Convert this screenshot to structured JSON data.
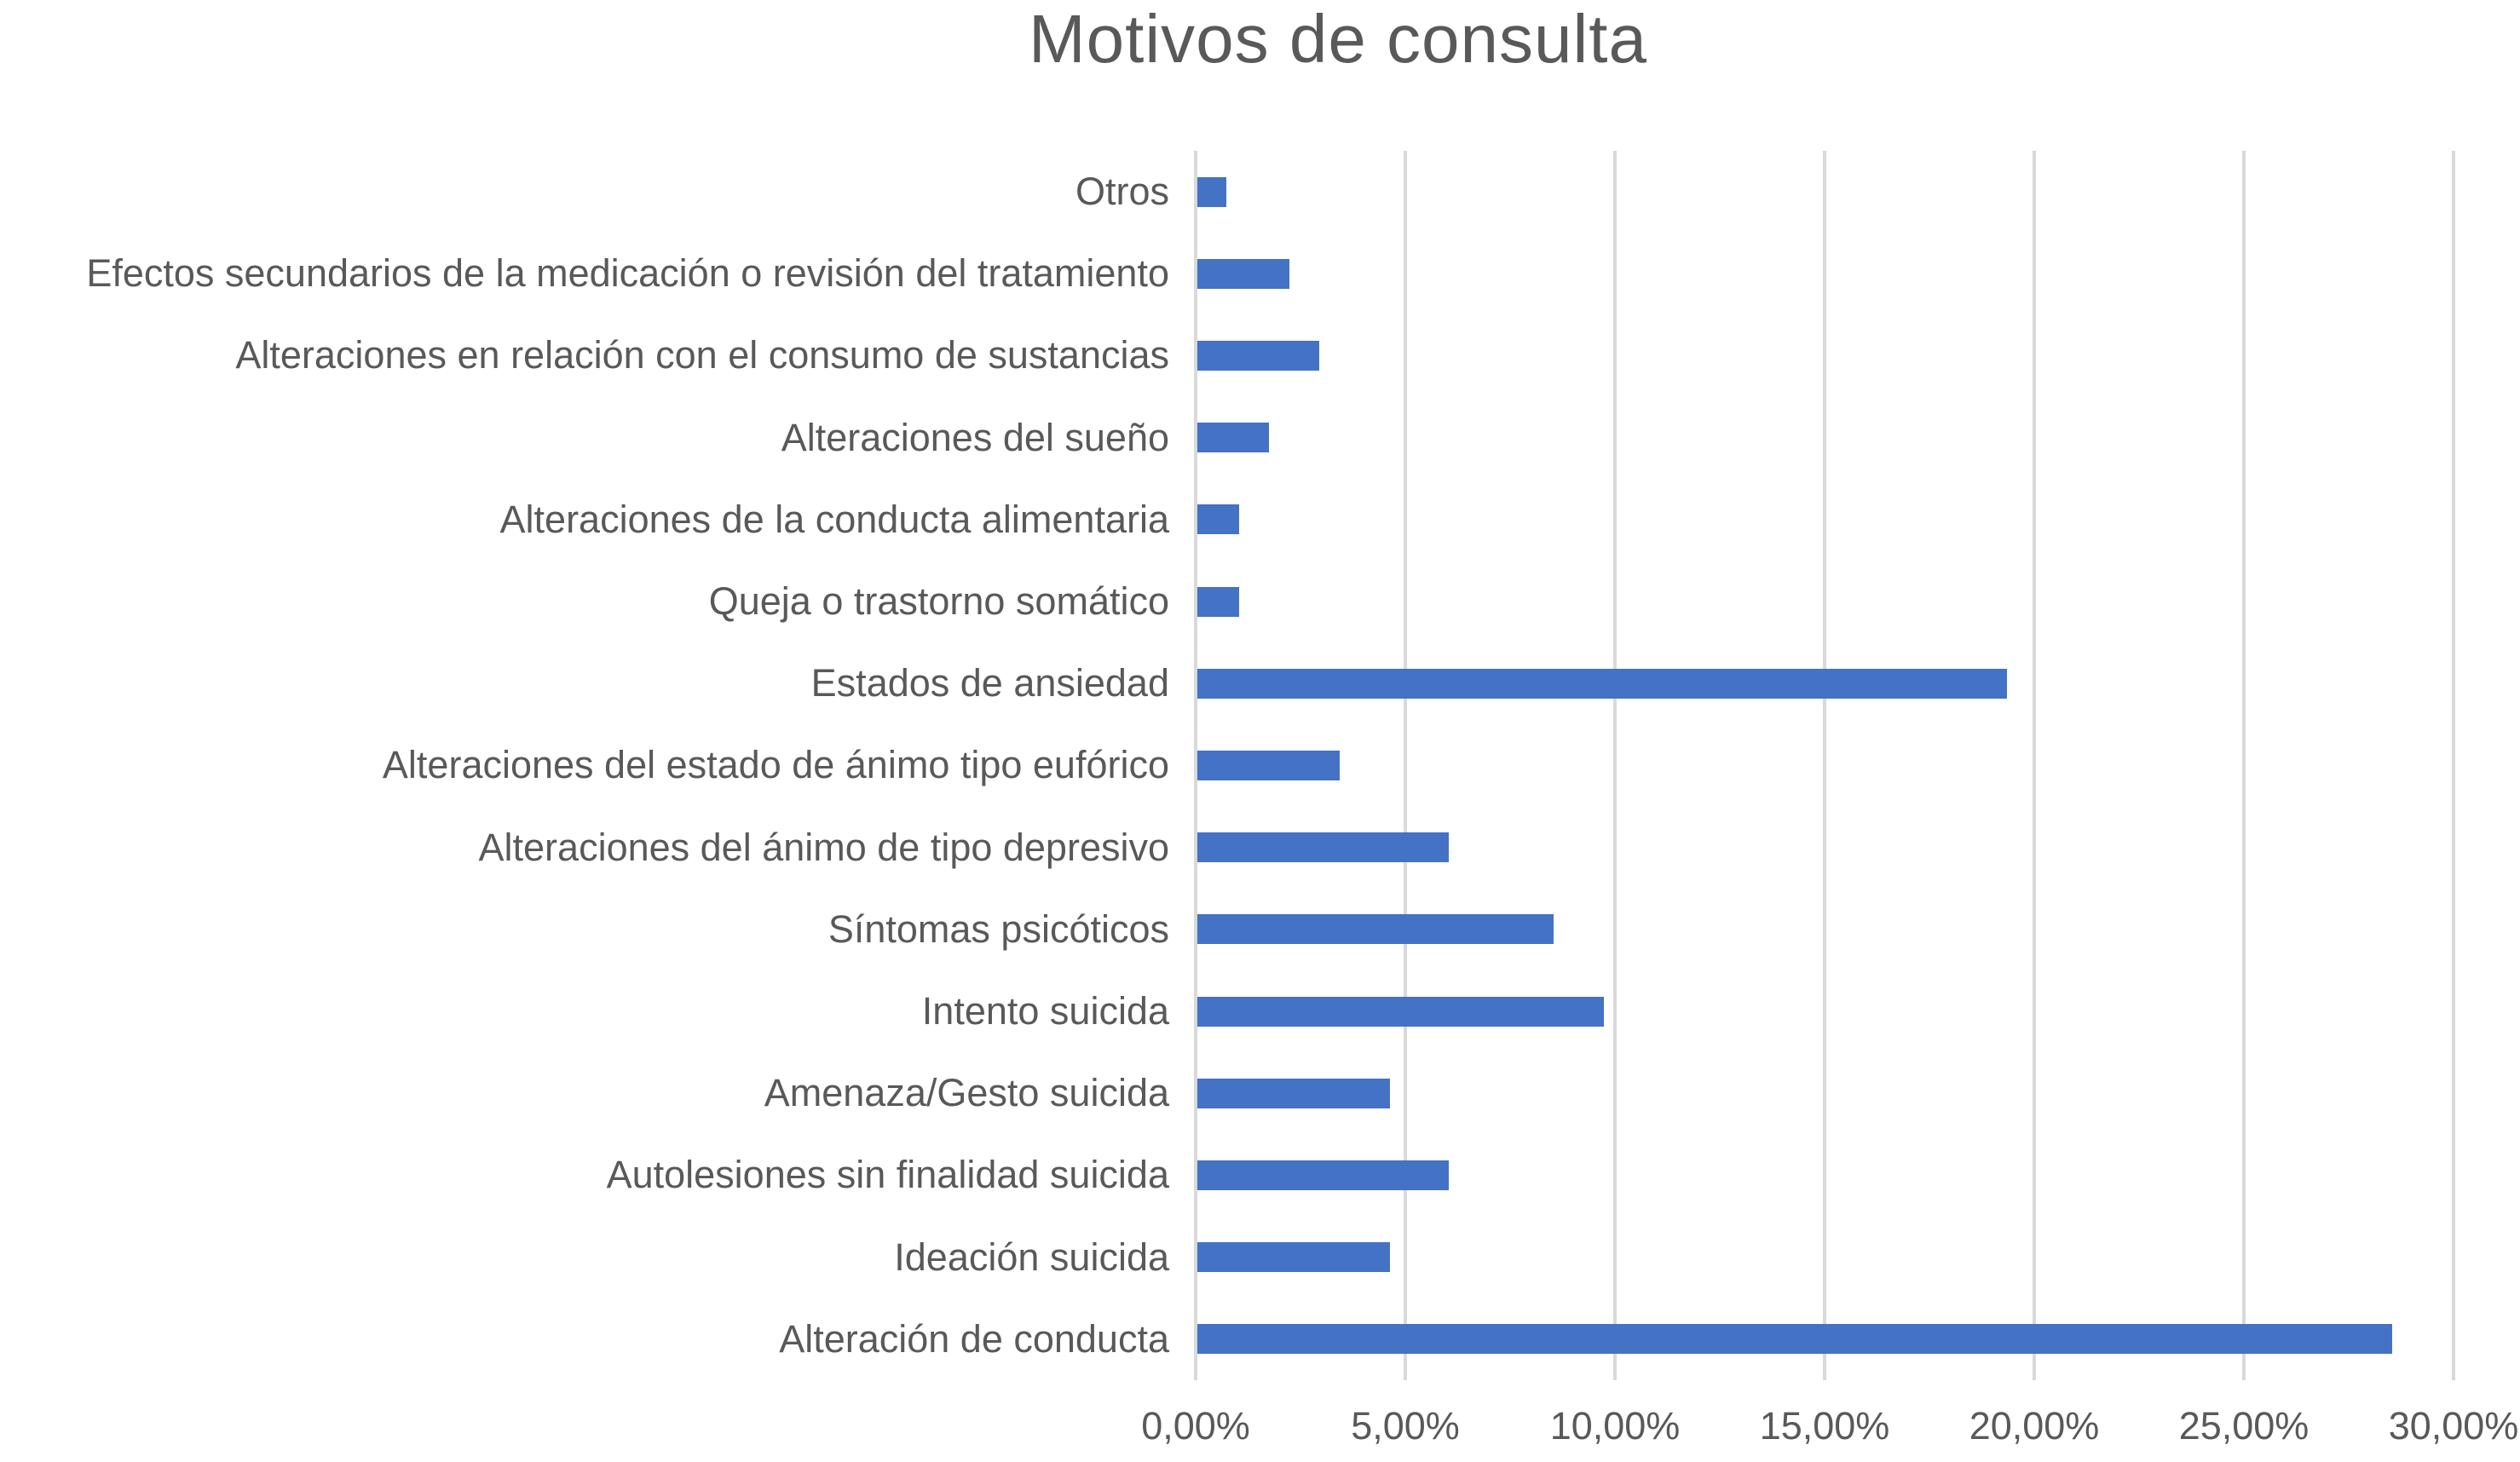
{
  "chart_data": {
    "type": "bar",
    "orientation": "horizontal",
    "title": "Motivos de consulta",
    "categories": [
      "Otros",
      "Efectos secundarios de la medicación o revisión del tratamiento",
      "Alteraciones en relación con el consumo de sustancias",
      "Alteraciones del sueño",
      "Alteraciones de la conducta alimentaria",
      "Queja o trastorno somático",
      "Estados de ansiedad",
      "Alteraciones del estado de ánimo tipo eufórico",
      "Alteraciones del ánimo de tipo depresivo",
      "Síntomas psicóticos",
      "Intento suicida",
      "Amenaza/Gesto suicida",
      "Autolesiones sin finalidad suicida",
      "Ideación suicida",
      "Alteración de conducta"
    ],
    "values": [
      0.7,
      2.2,
      2.9,
      1.7,
      1.0,
      1.0,
      19.3,
      3.4,
      6.0,
      8.5,
      9.7,
      4.6,
      6.0,
      4.6,
      28.5
    ],
    "value_unit": "%",
    "xlabel": "",
    "ylabel": "",
    "x_axis": {
      "min": 0,
      "max": 30,
      "tick_step": 5,
      "tick_labels": [
        "0,00%",
        "5,00%",
        "10,00%",
        "15,00%",
        "20,00%",
        "25,00%",
        "30,00%"
      ]
    },
    "grid": "vertical-only",
    "legend": "none",
    "colors": {
      "bar": "#4472C4",
      "gridline": "#D9D9D9",
      "text": "#595959",
      "background": "#FFFFFF"
    }
  }
}
